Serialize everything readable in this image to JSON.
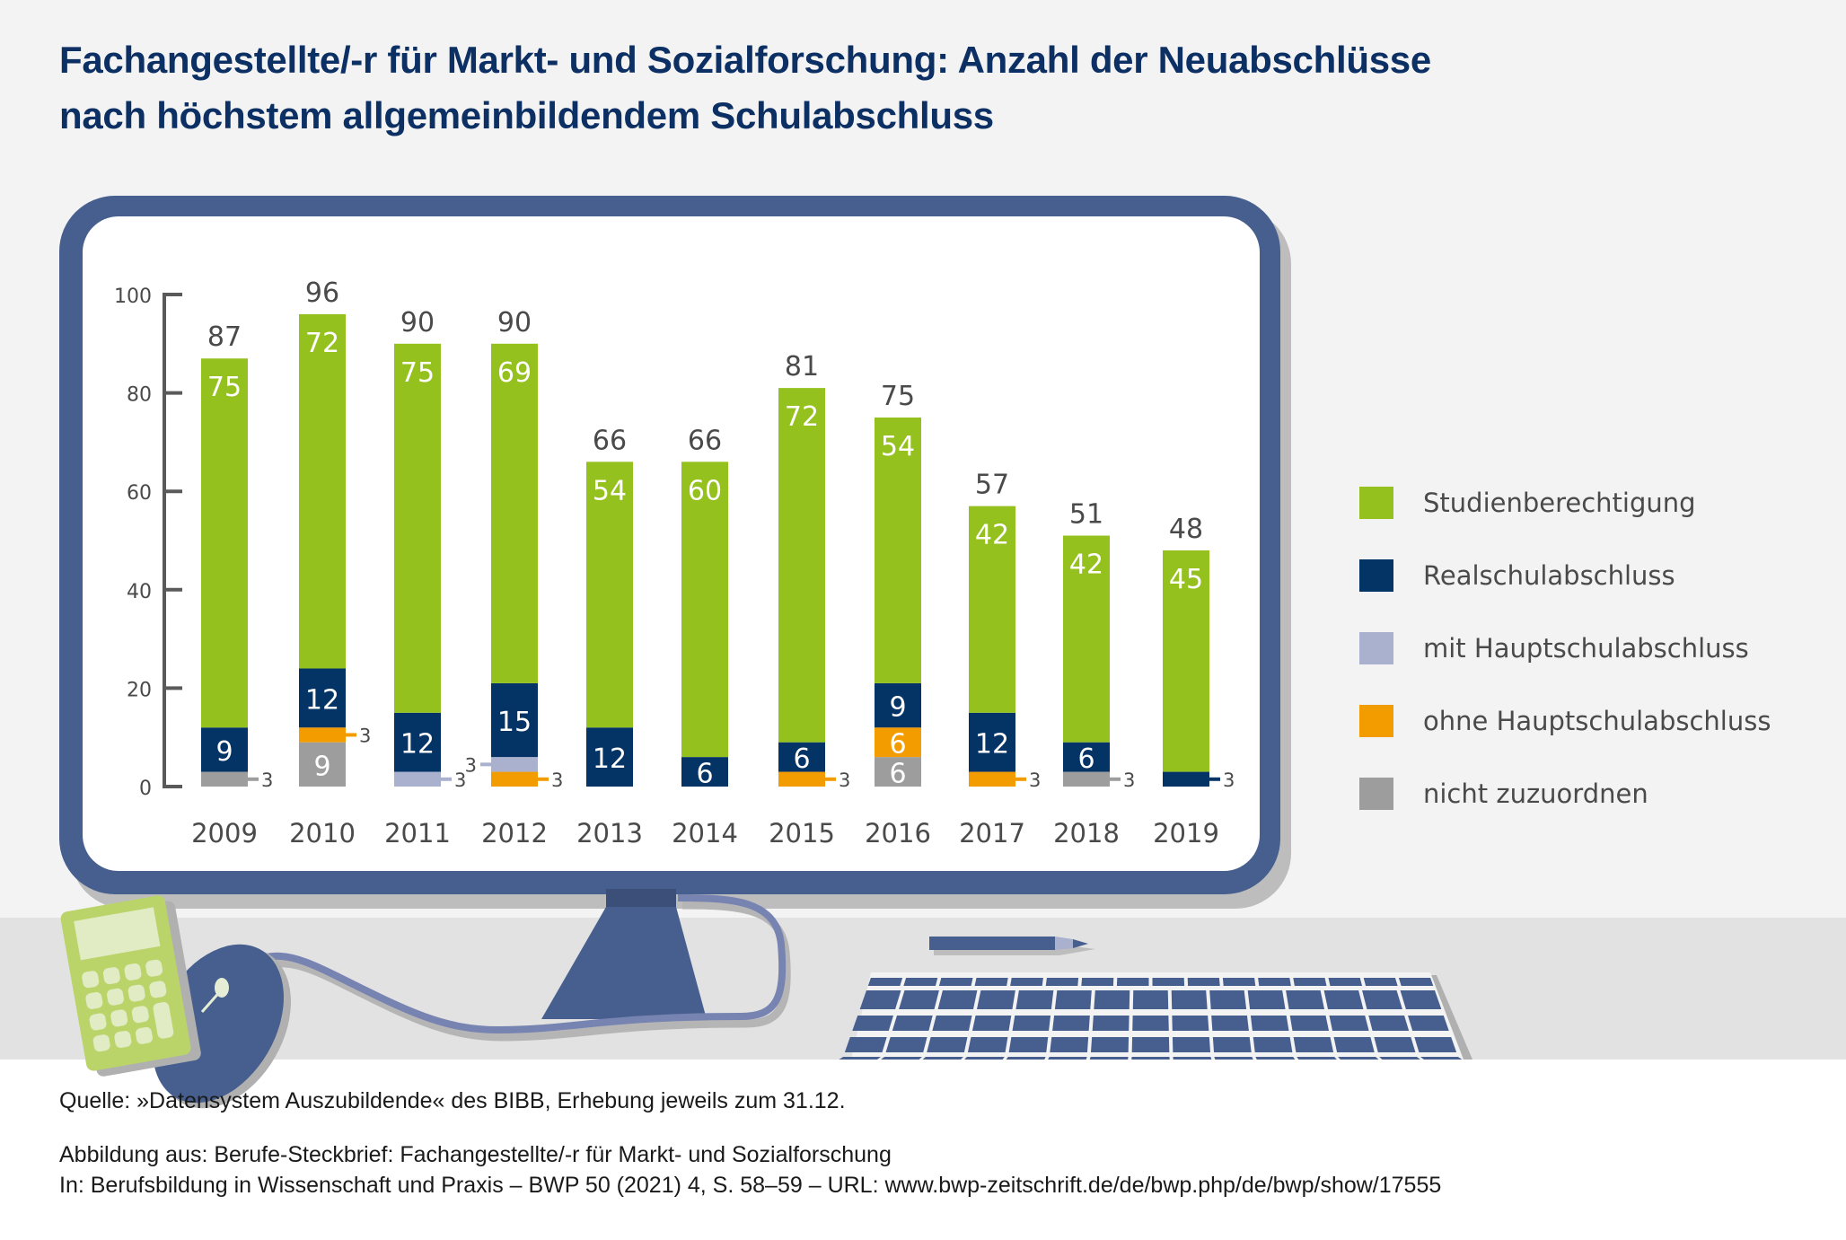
{
  "title": {
    "line1": "Fachangestellte/-r für Markt- und Sozialforschung: Anzahl der Neuabschlüsse",
    "line2": "nach höchstem allgemeinbildendem Schulabschluss"
  },
  "legend": [
    {
      "label": "Studienberechtigung",
      "color": "#95c11f"
    },
    {
      "label": "Realschulabschluss",
      "color": "#043366"
    },
    {
      "label": "mit Hauptschulabschluss",
      "color": "#a9b1cf"
    },
    {
      "label": "ohne Hauptschulabschluss",
      "color": "#f39c00"
    },
    {
      "label": "nicht zuzuordnen",
      "color": "#9d9d9d"
    }
  ],
  "chart_data": {
    "type": "bar",
    "stacked": true,
    "title": "Fachangestellte/-r für Markt- und Sozialforschung: Anzahl der Neuabschlüsse nach höchstem allgemeinbildendem Schulabschluss",
    "xlabel": "",
    "ylabel": "",
    "ylim": [
      0,
      100
    ],
    "yticks": [
      0,
      20,
      40,
      60,
      80,
      100
    ],
    "grid": false,
    "legend_position": "right",
    "categories": [
      "2009",
      "2010",
      "2011",
      "2012",
      "2013",
      "2014",
      "2015",
      "2016",
      "2017",
      "2018",
      "2019"
    ],
    "totals": [
      87,
      96,
      90,
      90,
      66,
      66,
      81,
      75,
      57,
      51,
      48
    ],
    "series": [
      {
        "name": "nicht zuzuordnen",
        "color": "#9d9d9d",
        "values": [
          3,
          9,
          0,
          0,
          0,
          0,
          0,
          6,
          0,
          3,
          0
        ]
      },
      {
        "name": "ohne Hauptschulabschluss",
        "color": "#f39c00",
        "values": [
          0,
          3,
          0,
          3,
          0,
          0,
          3,
          6,
          3,
          0,
          0
        ]
      },
      {
        "name": "mit Hauptschulabschluss",
        "color": "#a9b1cf",
        "values": [
          0,
          0,
          3,
          3,
          0,
          0,
          0,
          0,
          0,
          0,
          0
        ]
      },
      {
        "name": "Realschulabschluss",
        "color": "#043366",
        "values": [
          9,
          12,
          12,
          15,
          12,
          6,
          6,
          9,
          12,
          6,
          3
        ]
      },
      {
        "name": "Studienberechtigung",
        "color": "#95c11f",
        "values": [
          75,
          72,
          75,
          69,
          54,
          60,
          72,
          54,
          42,
          42,
          45
        ]
      }
    ]
  },
  "footer": {
    "source": "Quelle: »Datensystem Auszubildende« des BIBB, Erhebung jeweils zum 31.12.",
    "figure_from": "Abbildung aus: Berufe-Steckbrief: Fachangestellte/-r für Markt- und Sozialforschung",
    "citation": "In: Berufsbildung in Wissenschaft und Praxis – BWP 50 (2021) 4, S. 58–59 – URL: www.bwp-zeitschrift.de/de/bwp.php/de/bwp/show/17555"
  },
  "colors": {
    "title": "#0c2f64",
    "monitor_frame": "#475f8e",
    "background": "#f3f3f3",
    "desk": "#e2e2e2"
  }
}
